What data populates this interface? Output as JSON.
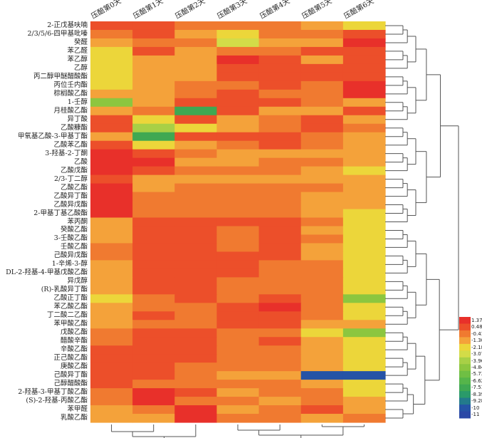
{
  "chart_data": {
    "type": "heatmap",
    "title": "",
    "columns": [
      "压醅第0天",
      "压醅第1天",
      "压醅第2天",
      "压醅第3天",
      "压醅第4天",
      "压醅第5天",
      "压醅第6天"
    ],
    "rows": [
      "2-正戊基呋喃",
      "2/3/5/6-四甲基吡嗪",
      "癸醛",
      "苯乙醛",
      "苯乙醇",
      "乙醇",
      "丙二醇甲醚醋酸酯",
      "丙位壬内酯",
      "棕榈酸乙酯",
      "1-壬醇",
      "月桂酸乙酯",
      "异丁酸",
      "乙酸糠酯",
      "甲氧基乙酸-3-甲基丁酯",
      "乙酸苯乙酯",
      "3-羟基-2-丁酮",
      "乙酸",
      "乙酸戊酯",
      "2/3-丁二醇",
      "乙酸乙酯",
      "乙酸异丁酯",
      "乙酸异戊酯",
      "2-甲基丁基乙酸酯",
      "苯丙酮",
      "癸酸乙酯",
      "3-壬酸乙酯",
      "壬酸乙酯",
      "己酸异戊酯",
      "1-辛烯-3-醇",
      "DL-2-羟基-4-甲基戊酸乙酯",
      "异戊醇",
      "(R)-乳酸异丁酯",
      "乙酸正丁酯",
      "苯乙酸乙酯",
      "丁二酸二乙酯",
      "苯甲酸乙酯",
      "戊酸乙酯",
      "醋酸辛酯",
      "辛酸乙酯",
      "正己酸乙酯",
      "庚酸乙酯",
      "己酸异丁酯",
      "己醇醋酸酯",
      "2-羟基-3-甲基丁酸乙酯",
      "(S)-2-羟基-丙酸乙酯",
      "苯甲醛",
      "乳酸乙酯"
    ],
    "values": [
      [
        0.48,
        0.48,
        -0.41,
        -0.41,
        -0.41,
        -1.3,
        -2.18
      ],
      [
        -0.41,
        0.48,
        -1.3,
        -2.18,
        -0.41,
        -0.41,
        0.48
      ],
      [
        -1.3,
        -0.41,
        -0.41,
        -3.07,
        -1.3,
        -1.3,
        1.37
      ],
      [
        -2.18,
        0.48,
        -1.3,
        -0.41,
        -0.41,
        0.48,
        0.48
      ],
      [
        -2.18,
        -1.3,
        -1.3,
        1.37,
        0.48,
        -1.3,
        0.48
      ],
      [
        -2.18,
        -1.3,
        -1.3,
        0.48,
        0.48,
        0.48,
        0.48
      ],
      [
        -2.18,
        -1.3,
        -1.3,
        0.48,
        0.48,
        0.48,
        0.48
      ],
      [
        -2.18,
        -1.3,
        -0.41,
        -0.41,
        0.48,
        -0.41,
        1.37
      ],
      [
        -1.3,
        -1.3,
        -0.41,
        0.48,
        -0.41,
        -0.41,
        1.37
      ],
      [
        -4.84,
        -1.3,
        0.48,
        0.48,
        0.48,
        -0.41,
        -1.3
      ],
      [
        -1.3,
        -0.41,
        -7.51,
        0.48,
        -1.3,
        -1.3,
        0.48
      ],
      [
        0.48,
        -2.18,
        0.48,
        -1.3,
        -0.41,
        0.48,
        -1.3
      ],
      [
        0.48,
        -3.96,
        -2.18,
        -1.3,
        -0.41,
        0.48,
        -0.41
      ],
      [
        -1.3,
        -7.51,
        0.48,
        0.48,
        0.48,
        -0.41,
        -1.3
      ],
      [
        0.48,
        -2.18,
        -1.3,
        -0.41,
        0.48,
        -0.41,
        -1.3
      ],
      [
        1.37,
        0.48,
        -0.41,
        -1.3,
        -1.3,
        -1.3,
        -1.3
      ],
      [
        1.37,
        1.37,
        -1.3,
        -1.3,
        -0.41,
        -0.41,
        -1.3
      ],
      [
        1.37,
        0.48,
        -0.41,
        -0.41,
        -0.41,
        -1.3,
        -2.18
      ],
      [
        0.48,
        -1.3,
        -1.3,
        -1.3,
        -1.3,
        -1.3,
        -1.3
      ],
      [
        1.37,
        -1.3,
        -0.41,
        -0.41,
        -0.41,
        -0.41,
        -1.3
      ],
      [
        1.37,
        -0.41,
        -0.41,
        -0.41,
        -0.41,
        -1.3,
        -1.3
      ],
      [
        1.37,
        -0.41,
        -0.41,
        -0.41,
        -0.41,
        -1.3,
        -1.3
      ],
      [
        1.37,
        -0.41,
        -0.41,
        -0.41,
        -0.41,
        -1.3,
        -2.18
      ],
      [
        -1.3,
        0.48,
        0.48,
        0.48,
        0.48,
        -0.41,
        -2.18
      ],
      [
        -1.3,
        0.48,
        0.48,
        -0.41,
        0.48,
        -1.3,
        -2.18
      ],
      [
        -1.3,
        0.48,
        0.48,
        -0.41,
        0.48,
        -0.41,
        -2.18
      ],
      [
        -0.41,
        0.48,
        0.48,
        -0.41,
        0.48,
        -1.3,
        -2.18
      ],
      [
        -0.41,
        0.48,
        0.48,
        0.48,
        0.48,
        -1.3,
        -2.18
      ],
      [
        -1.3,
        0.48,
        0.48,
        0.48,
        -0.41,
        -0.41,
        -2.18
      ],
      [
        -1.3,
        0.48,
        0.48,
        0.48,
        -0.41,
        -0.41,
        -2.18
      ],
      [
        -1.3,
        0.48,
        0.48,
        -0.41,
        -0.41,
        -0.41,
        -2.18
      ],
      [
        -1.3,
        0.48,
        0.48,
        -0.41,
        -0.41,
        -0.41,
        -2.18
      ],
      [
        -2.18,
        -0.41,
        0.48,
        -0.41,
        0.48,
        -0.41,
        -4.84
      ],
      [
        -1.3,
        -0.41,
        -0.41,
        0.48,
        1.37,
        -0.41,
        -2.18
      ],
      [
        -1.3,
        0.48,
        -0.41,
        0.48,
        0.48,
        -0.41,
        -2.18
      ],
      [
        -1.3,
        -0.41,
        -0.41,
        0.48,
        0.48,
        -1.3,
        -1.3
      ],
      [
        -0.41,
        0.48,
        0.48,
        -0.41,
        -0.41,
        -2.18,
        -4.84
      ],
      [
        -0.41,
        0.48,
        0.48,
        -0.41,
        0.48,
        -1.3,
        -2.18
      ],
      [
        0.48,
        0.48,
        0.48,
        -0.41,
        -0.41,
        -1.3,
        -2.18
      ],
      [
        0.48,
        0.48,
        0.48,
        -0.41,
        -0.41,
        -1.3,
        -2.18
      ],
      [
        0.48,
        0.48,
        -0.41,
        -0.41,
        -0.41,
        -1.3,
        -2.18
      ],
      [
        0.48,
        0.48,
        -0.41,
        -1.3,
        -1.3,
        -10,
        -10
      ],
      [
        0.48,
        -0.41,
        -0.41,
        -0.41,
        -0.41,
        -1.3,
        -2.18
      ],
      [
        -0.41,
        1.37,
        0.48,
        -1.3,
        -0.41,
        -0.41,
        -2.18
      ],
      [
        -0.41,
        1.37,
        -0.41,
        -0.41,
        -1.3,
        -0.41,
        -1.3
      ],
      [
        -1.3,
        -0.41,
        1.37,
        -1.3,
        -0.41,
        0.48,
        -1.3
      ],
      [
        -1.3,
        -1.3,
        1.37,
        -0.41,
        -0.41,
        -1.3,
        -0.41
      ]
    ],
    "legend": {
      "placement": "bottom-right",
      "ticks": [
        "1.37",
        "0.48",
        "-0.41",
        "-1.30",
        "-2.18",
        "-3.07",
        "-3.96",
        "-4.84",
        "-5.73",
        "-6.62",
        "-7.51",
        "-8.39",
        "-9.28",
        "-10",
        "-11"
      ],
      "stops": [
        1.37,
        0.48,
        -0.41,
        -1.3,
        -2.18,
        -3.07,
        -3.96,
        -4.84,
        -5.73,
        -6.62,
        -7.51,
        -8.39,
        -9.28,
        -10,
        -11
      ],
      "colors": [
        "#e8302a",
        "#ec4f2a",
        "#f07a30",
        "#f4a23a",
        "#ecd63a",
        "#d3dc48",
        "#a8d046",
        "#8cc63f",
        "#6fbf44",
        "#55b54a",
        "#3fa852",
        "#2a9a6a",
        "#237a8c",
        "#2553a6",
        "#2a48a6"
      ]
    },
    "row_dendrogram": true,
    "column_dendrogram": true
  }
}
